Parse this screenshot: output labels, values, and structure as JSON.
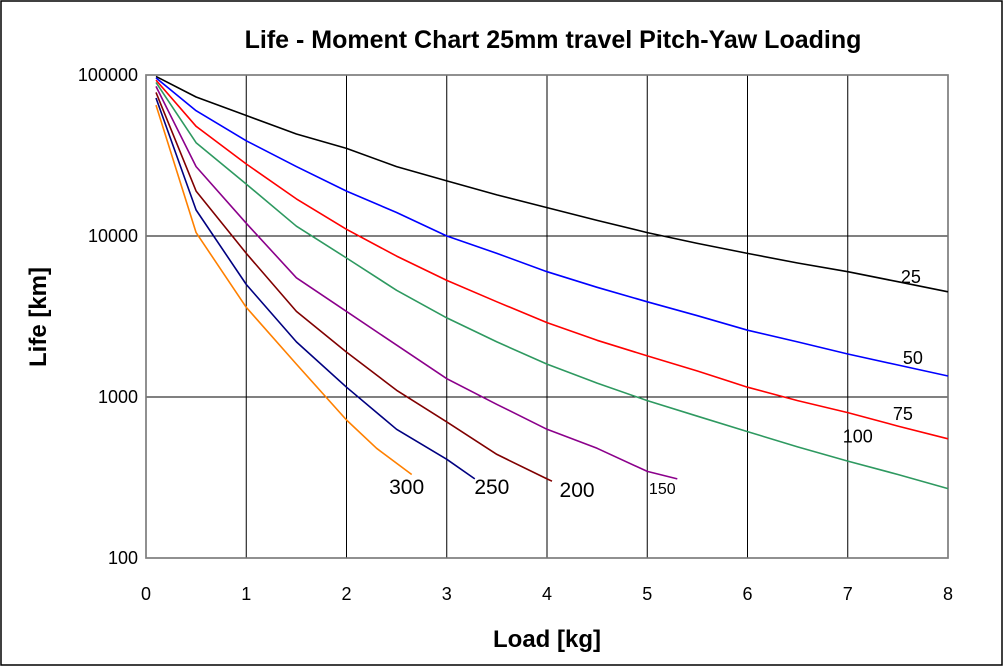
{
  "chart_data": {
    "type": "line",
    "title": "Life - Moment Chart 25mm travel Pitch-Yaw Loading",
    "xlabel": "Load [kg]",
    "ylabel": "Life [km]",
    "xlim": [
      0,
      8
    ],
    "ylim": [
      100,
      100000
    ],
    "yscale": "log",
    "grid": true,
    "legend": "none",
    "xticks": [
      0,
      1,
      2,
      3,
      4,
      5,
      6,
      7,
      8
    ],
    "xtick_labels": [
      "0",
      "1",
      "2",
      "3",
      "4",
      "5",
      "6",
      "7",
      "8"
    ],
    "yticks": [
      100,
      1000,
      10000,
      100000
    ],
    "ytick_labels": [
      "100",
      "1000",
      "10000",
      "100000"
    ],
    "series": [
      {
        "label": "25",
        "color": "#000000",
        "label_x": 7.63,
        "label_y": 5100,
        "x": [
          0.1,
          0.5,
          1,
          1.5,
          2,
          2.5,
          3,
          3.5,
          4,
          4.5,
          5,
          5.5,
          6,
          6.5,
          7,
          7.5,
          8
        ],
        "y": [
          98000,
          73000,
          56000,
          43000,
          35000,
          27000,
          22000,
          18000,
          15000,
          12500,
          10500,
          9000,
          7800,
          6800,
          6000,
          5200,
          4500
        ]
      },
      {
        "label": "50",
        "color": "#0000ff",
        "label_x": 7.65,
        "label_y": 1600,
        "x": [
          0.1,
          0.5,
          1,
          1.5,
          2,
          2.5,
          3,
          3.5,
          4,
          4.5,
          5,
          5.5,
          6,
          6.5,
          7,
          7.5,
          8
        ],
        "y": [
          96000,
          60000,
          39000,
          27000,
          19000,
          14000,
          10000,
          7800,
          6000,
          4800,
          3900,
          3200,
          2600,
          2200,
          1850,
          1580,
          1350
        ]
      },
      {
        "label": "75",
        "color": "#ff0000",
        "label_x": 7.55,
        "label_y": 720,
        "x": [
          0.1,
          0.5,
          1,
          1.5,
          2,
          2.5,
          3,
          3.5,
          4,
          4.5,
          5,
          5.5,
          6,
          6.5,
          7,
          7.5,
          8
        ],
        "y": [
          93000,
          48000,
          28000,
          17000,
          11000,
          7500,
          5300,
          3900,
          2900,
          2250,
          1800,
          1450,
          1150,
          950,
          800,
          660,
          550
        ]
      },
      {
        "label": "100",
        "color": "#2e9960",
        "label_x": 7.1,
        "label_y": 520,
        "x": [
          0.1,
          0.5,
          1,
          1.5,
          2,
          2.5,
          3,
          3.5,
          4,
          4.5,
          5,
          5.5,
          6,
          6.5,
          7,
          7.5,
          8
        ],
        "y": [
          90000,
          38000,
          21000,
          11500,
          7300,
          4600,
          3100,
          2200,
          1600,
          1220,
          950,
          760,
          610,
          490,
          400,
          330,
          270
        ]
      },
      {
        "label": "150",
        "color": "#8b008b",
        "label_x": 5.15,
        "label_y": 250,
        "x": [
          0.1,
          0.5,
          1,
          1.5,
          2,
          2.5,
          3,
          3.5,
          4,
          4.5,
          5,
          5.3
        ],
        "y": [
          85000,
          27000,
          12000,
          5500,
          3400,
          2100,
          1300,
          900,
          630,
          480,
          345,
          310
        ]
      },
      {
        "label": "200",
        "color": "#800000",
        "label_x": 4.3,
        "label_y": 240,
        "x": [
          0.1,
          0.5,
          1,
          1.5,
          2,
          2.5,
          3,
          3.5,
          4,
          4.05
        ],
        "y": [
          78000,
          19000,
          7800,
          3400,
          1900,
          1100,
          700,
          440,
          310,
          300
        ]
      },
      {
        "label": "250",
        "color": "#000080",
        "label_x": 3.45,
        "label_y": 250,
        "x": [
          0.1,
          0.5,
          1,
          1.5,
          2,
          2.5,
          3,
          3.28
        ],
        "y": [
          72000,
          14500,
          5000,
          2200,
          1150,
          630,
          410,
          310
        ]
      },
      {
        "label": "300",
        "color": "#ff8000",
        "label_x": 2.6,
        "label_y": 250,
        "x": [
          0.1,
          0.5,
          1,
          1.5,
          2,
          2.3,
          2.65
        ],
        "y": [
          65000,
          10500,
          3600,
          1600,
          720,
          480,
          330
        ]
      }
    ]
  }
}
